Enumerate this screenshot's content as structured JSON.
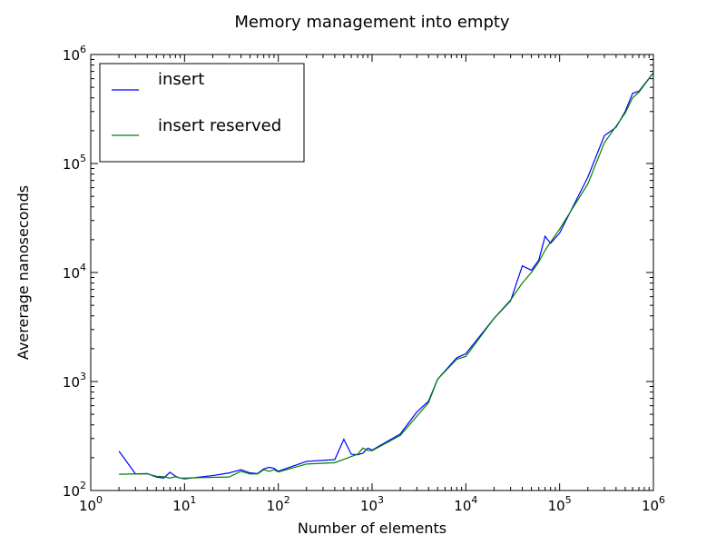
{
  "chart_data": {
    "type": "line",
    "title": "Memory management into empty",
    "xlabel": "Number of elements",
    "ylabel": "Avererage nanoseconds",
    "xscale": "log",
    "yscale": "log",
    "xlim": [
      1,
      1000000
    ],
    "ylim": [
      100,
      1000000
    ],
    "grid": false,
    "legend_position": "top-left",
    "x_ticks": [
      {
        "base": "10",
        "exp": "0"
      },
      {
        "base": "10",
        "exp": "1"
      },
      {
        "base": "10",
        "exp": "2"
      },
      {
        "base": "10",
        "exp": "3"
      },
      {
        "base": "10",
        "exp": "4"
      },
      {
        "base": "10",
        "exp": "5"
      },
      {
        "base": "10",
        "exp": "6"
      }
    ],
    "y_ticks": [
      {
        "base": "10",
        "exp": "2"
      },
      {
        "base": "10",
        "exp": "3"
      },
      {
        "base": "10",
        "exp": "4"
      },
      {
        "base": "10",
        "exp": "5"
      },
      {
        "base": "10",
        "exp": "6"
      }
    ],
    "series": [
      {
        "name": "insert",
        "color": "#0000ff",
        "points": [
          [
            2,
            230
          ],
          [
            3,
            142
          ],
          [
            4,
            143
          ],
          [
            5,
            133
          ],
          [
            6,
            130
          ],
          [
            7,
            147
          ],
          [
            8,
            135
          ],
          [
            9,
            130
          ],
          [
            10,
            128
          ],
          [
            20,
            137
          ],
          [
            30,
            145
          ],
          [
            40,
            155
          ],
          [
            50,
            145
          ],
          [
            60,
            143
          ],
          [
            70,
            158
          ],
          [
            80,
            163
          ],
          [
            90,
            160
          ],
          [
            100,
            150
          ],
          [
            200,
            185
          ],
          [
            400,
            192
          ],
          [
            500,
            295
          ],
          [
            600,
            215
          ],
          [
            700,
            213
          ],
          [
            800,
            220
          ],
          [
            900,
            245
          ],
          [
            1000,
            235
          ],
          [
            2000,
            330
          ],
          [
            3000,
            525
          ],
          [
            4000,
            660
          ],
          [
            5000,
            1050
          ],
          [
            8000,
            1650
          ],
          [
            10000,
            1800
          ],
          [
            20000,
            3800
          ],
          [
            30000,
            5500
          ],
          [
            40000,
            11500
          ],
          [
            50000,
            10500
          ],
          [
            60000,
            13000
          ],
          [
            70000,
            21500
          ],
          [
            80000,
            18500
          ],
          [
            100000,
            23000
          ],
          [
            200000,
            75000
          ],
          [
            300000,
            180000
          ],
          [
            400000,
            215000
          ],
          [
            500000,
            300000
          ],
          [
            600000,
            440000
          ],
          [
            700000,
            460000
          ],
          [
            1000000,
            680000
          ]
        ]
      },
      {
        "name": "insert reserved",
        "color": "#008000",
        "points": [
          [
            2,
            141
          ],
          [
            3,
            142
          ],
          [
            4,
            142
          ],
          [
            5,
            135
          ],
          [
            6,
            134
          ],
          [
            7,
            130
          ],
          [
            8,
            134
          ],
          [
            9,
            130
          ],
          [
            10,
            130
          ],
          [
            20,
            132
          ],
          [
            30,
            133
          ],
          [
            40,
            150
          ],
          [
            50,
            142
          ],
          [
            60,
            142
          ],
          [
            70,
            155
          ],
          [
            80,
            150
          ],
          [
            90,
            155
          ],
          [
            100,
            148
          ],
          [
            200,
            175
          ],
          [
            400,
            180
          ],
          [
            500,
            193
          ],
          [
            600,
            205
          ],
          [
            700,
            215
          ],
          [
            800,
            245
          ],
          [
            900,
            233
          ],
          [
            1000,
            232
          ],
          [
            2000,
            320
          ],
          [
            3000,
            480
          ],
          [
            4000,
            640
          ],
          [
            5000,
            1050
          ],
          [
            8000,
            1600
          ],
          [
            10000,
            1700
          ],
          [
            20000,
            3800
          ],
          [
            30000,
            5600
          ],
          [
            40000,
            8000
          ],
          [
            50000,
            10000
          ],
          [
            60000,
            12500
          ],
          [
            70000,
            16000
          ],
          [
            80000,
            19000
          ],
          [
            100000,
            25000
          ],
          [
            200000,
            65000
          ],
          [
            300000,
            155000
          ],
          [
            400000,
            220000
          ],
          [
            500000,
            290000
          ],
          [
            600000,
            400000
          ],
          [
            700000,
            450000
          ],
          [
            1000000,
            680000
          ]
        ]
      }
    ]
  }
}
